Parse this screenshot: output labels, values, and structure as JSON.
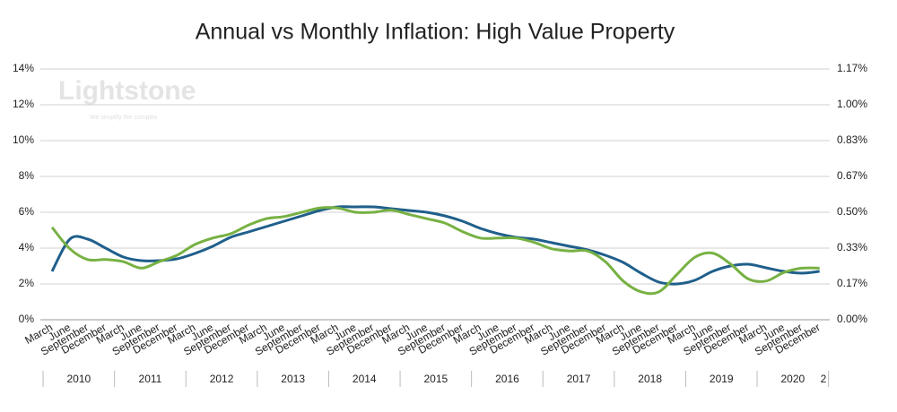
{
  "chart_data": {
    "type": "line",
    "title": "Annual vs Monthly Inflation: High Value Property",
    "watermark": "Lightstone",
    "watermark_tagline": "We simplify the complex",
    "categories": [
      "March",
      "June",
      "September",
      "December",
      "March",
      "June",
      "September",
      "December",
      "March",
      "June",
      "September",
      "December",
      "March",
      "June",
      "September",
      "December",
      "March",
      "June",
      "September",
      "December",
      "March",
      "June",
      "September",
      "December",
      "March",
      "June",
      "September",
      "December",
      "March",
      "June",
      "September",
      "December",
      "March",
      "June",
      "September",
      "December",
      "March",
      "June",
      "September",
      "December",
      "March",
      "June",
      "September",
      "December"
    ],
    "years": [
      "2010",
      "2011",
      "2012",
      "2013",
      "2014",
      "2015",
      "2016",
      "2017",
      "2018",
      "2019",
      "2020",
      "2"
    ],
    "series": [
      {
        "color": "#1f5f8b",
        "axis": "y",
        "values": [
          2.7,
          4.5,
          4.5,
          4.0,
          3.5,
          3.3,
          3.3,
          3.4,
          3.7,
          4.1,
          4.6,
          4.9,
          5.2,
          5.5,
          5.8,
          6.1,
          6.3,
          6.3,
          6.3,
          6.2,
          6.1,
          6.0,
          5.8,
          5.5,
          5.1,
          4.8,
          4.6,
          4.5,
          4.3,
          4.1,
          3.9,
          3.6,
          3.2,
          2.6,
          2.1,
          2.0,
          2.2,
          2.7,
          3.0,
          3.1,
          2.9,
          2.7,
          2.6,
          2.7
        ]
      },
      {
        "color": "#77b143",
        "axis": "y2",
        "values": [
          0.43,
          0.33,
          0.28,
          0.28,
          0.27,
          0.24,
          0.27,
          0.3,
          0.35,
          0.38,
          0.4,
          0.44,
          0.47,
          0.48,
          0.5,
          0.52,
          0.52,
          0.5,
          0.5,
          0.51,
          0.49,
          0.47,
          0.45,
          0.41,
          0.38,
          0.38,
          0.38,
          0.36,
          0.33,
          0.32,
          0.32,
          0.27,
          0.18,
          0.13,
          0.13,
          0.21,
          0.29,
          0.31,
          0.26,
          0.19,
          0.18,
          0.22,
          0.24,
          0.24
        ]
      }
    ],
    "ylim": [
      0,
      14
    ],
    "yticks": [
      {
        "value": 0,
        "label": "0%"
      },
      {
        "value": 2,
        "label": "2%"
      },
      {
        "value": 4,
        "label": "4%"
      },
      {
        "value": 6,
        "label": "6%"
      },
      {
        "value": 8,
        "label": "8%"
      },
      {
        "value": 10,
        "label": "10%"
      },
      {
        "value": 12,
        "label": "12%"
      },
      {
        "value": 14,
        "label": "14%"
      }
    ],
    "y2lim": [
      0,
      1.1667
    ],
    "y2ticks": [
      {
        "value": 0,
        "label": "0.00%"
      },
      {
        "value": 0.1667,
        "label": "0.17%"
      },
      {
        "value": 0.3333,
        "label": "0.33%"
      },
      {
        "value": 0.5,
        "label": "0.50%"
      },
      {
        "value": 0.6667,
        "label": "0.67%"
      },
      {
        "value": 0.8333,
        "label": "0.83%"
      },
      {
        "value": 1.0,
        "label": "1.00%"
      },
      {
        "value": 1.1667,
        "label": "1.17%"
      }
    ],
    "grid": true
  }
}
